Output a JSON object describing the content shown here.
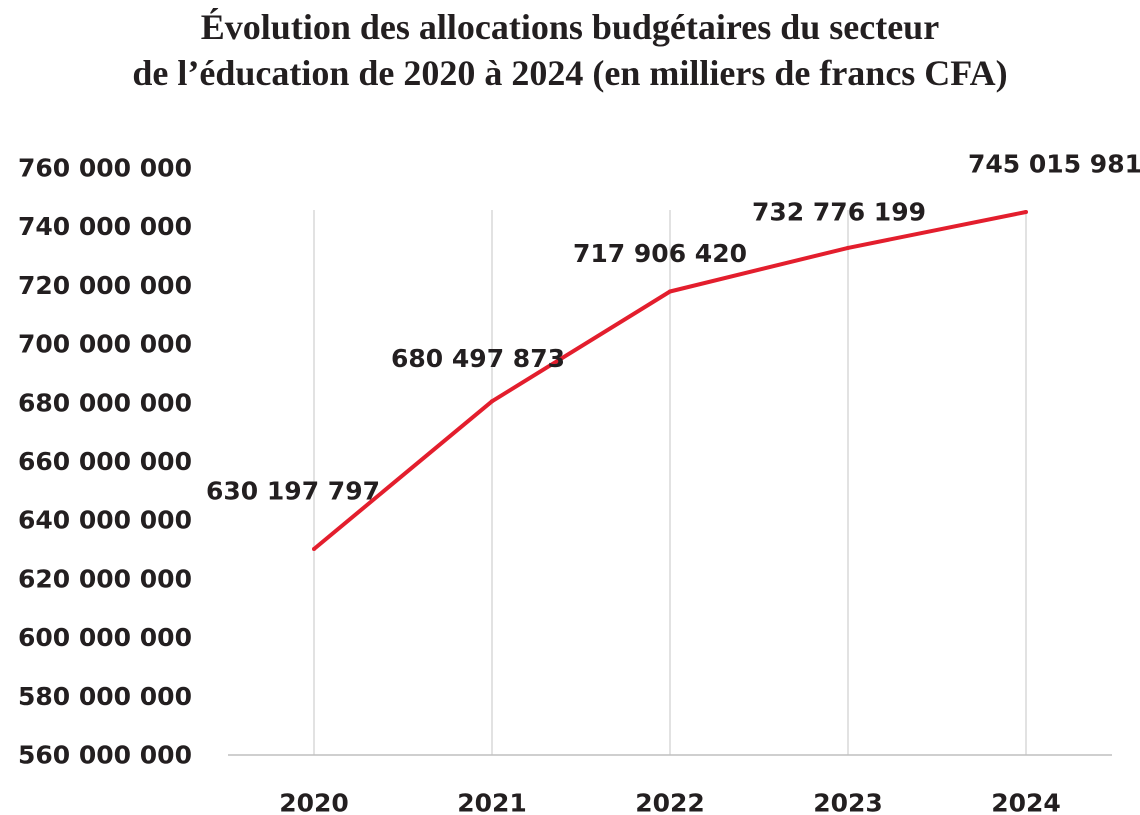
{
  "chart_data": {
    "type": "line",
    "title_lines": [
      "Évolution des allocations budgétaires du secteur",
      "de l’éducation de 2020 à 2024 (en milliers de francs CFA)"
    ],
    "categories": [
      "2020",
      "2021",
      "2022",
      "2023",
      "2024"
    ],
    "series": [
      {
        "values": [
          630197797,
          680497873,
          717906420,
          732776199,
          745015981
        ],
        "labels": [
          "630 197 797",
          "680 497 873",
          "717 906 420",
          "732 776 199",
          "745 015 981"
        ],
        "color": "#e31e2d"
      }
    ],
    "ylim": [
      560000000,
      760000000
    ],
    "yticks": [
      760000000,
      740000000,
      720000000,
      700000000,
      680000000,
      660000000,
      640000000,
      620000000,
      600000000,
      580000000,
      560000000
    ],
    "ytick_labels": [
      "760 000 000",
      "740 000 000",
      "720 000 000",
      "700 000 000",
      "680 000 000",
      "660 000 000",
      "640 000 000",
      "620 000 000",
      "600 000 000",
      "580 000 000",
      "560 000 000"
    ],
    "xlabel": "",
    "ylabel": "",
    "grid": "vertical",
    "gridline_color": "#d9d9d9",
    "axis_color": "#bfbfbf",
    "text_color": "#231f20"
  }
}
